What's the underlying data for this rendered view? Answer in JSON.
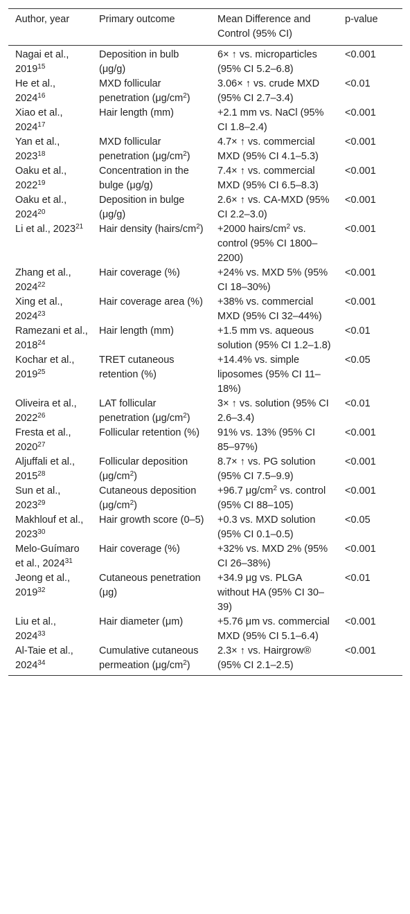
{
  "table": {
    "header": [
      "Author, year",
      "Primary outcome",
      "Mean Difference and Control (95% CI)",
      "p-value"
    ],
    "rows": [
      [
        [
          "Nagai et al., 2019",
          "15"
        ],
        [
          "Deposition in bulb (μg/g)"
        ],
        [
          "6× ↑ vs. microparticles (95% CI 5.2–6.8)"
        ],
        [
          "<0.001"
        ]
      ],
      [
        [
          "He et al., 2024",
          "16"
        ],
        [
          "MXD follicular penetration (μg/cm",
          "2",
          ")"
        ],
        [
          "3.06× ↑ vs. crude MXD (95% CI 2.7–3.4)"
        ],
        [
          "<0.01"
        ]
      ],
      [
        [
          "Xiao et al., 2024",
          "17"
        ],
        [
          "Hair length (mm)"
        ],
        [
          "+2.1 mm vs. NaCl (95% CI 1.8–2.4)"
        ],
        [
          "<0.001"
        ]
      ],
      [
        [
          "Yan et al., 2023",
          "18"
        ],
        [
          "MXD follicular penetration (μg/cm",
          "2",
          ")"
        ],
        [
          "4.7× ↑ vs. commercial MXD (95% CI 4.1–5.3)"
        ],
        [
          "<0.001"
        ]
      ],
      [
        [
          "Oaku et al., 2022",
          "19"
        ],
        [
          "Concentration in the bulge (μg/g)"
        ],
        [
          "7.4× ↑ vs. commercial MXD (95% CI 6.5–8.3)"
        ],
        [
          "<0.001"
        ]
      ],
      [
        [
          "Oaku et al., 2024",
          "20"
        ],
        [
          "Deposition in bulge (μg/g)"
        ],
        [
          "2.6× ↑ vs. CA-MXD (95% CI 2.2–3.0)"
        ],
        [
          "<0.001"
        ]
      ],
      [
        [
          "Li et al., 2023",
          "21"
        ],
        [
          "Hair density (hairs/cm",
          "2",
          ")"
        ],
        [
          "+2000 hairs/cm",
          "2",
          " vs. control (95% CI 1800–2200)"
        ],
        [
          "<0.001"
        ]
      ],
      [
        [
          "Zhang et al., 2024",
          "22"
        ],
        [
          "Hair coverage (%)"
        ],
        [
          "+24% vs. MXD 5% (95% CI 18–30%)"
        ],
        [
          "<0.001"
        ]
      ],
      [
        [
          "Xing et al., 2024",
          "23"
        ],
        [
          "Hair coverage area (%)"
        ],
        [
          "+38% vs. commercial MXD (95% CI 32–44%)"
        ],
        [
          "<0.001"
        ]
      ],
      [
        [
          "Ramezani et al., 2018",
          "24"
        ],
        [
          "Hair length (mm)"
        ],
        [
          "+1.5 mm vs. aqueous solution (95% CI 1.2–1.8)"
        ],
        [
          "<0.01"
        ]
      ],
      [
        [
          "Kochar et al., 2019",
          "25"
        ],
        [
          "TRET cutaneous retention (%)"
        ],
        [
          "+14.4% vs. simple liposomes (95% CI 11–18%)"
        ],
        [
          "<0.05"
        ]
      ],
      [
        [
          "Oliveira et al., 2022",
          "26"
        ],
        [
          "LAT follicular penetration (μg/cm",
          "2",
          ")"
        ],
        [
          "3× ↑ vs. solution (95% CI 2.6–3.4)"
        ],
        [
          "<0.01"
        ]
      ],
      [
        [
          "Fresta et al., 2020",
          "27"
        ],
        [
          "Follicular retention (%)"
        ],
        [
          "91% vs. 13% (95% CI 85–97%)"
        ],
        [
          "<0.001"
        ]
      ],
      [
        [
          "Aljuffali et al., 2015",
          "28"
        ],
        [
          "Follicular deposition (μg/cm",
          "2",
          ")"
        ],
        [
          "8.7× ↑ vs. PG solution (95% CI 7.5–9.9)"
        ],
        [
          "<0.001"
        ]
      ],
      [
        [
          "Sun et al., 2023",
          "29"
        ],
        [
          "Cutaneous deposition (μg/cm",
          "2",
          ")"
        ],
        [
          "+96.7 μg/cm",
          "2",
          " vs. control (95% CI 88–105)"
        ],
        [
          "<0.001"
        ]
      ],
      [
        [
          "Makhlouf et al., 2023",
          "30"
        ],
        [
          "Hair growth score (0–5)"
        ],
        [
          "+0.3 vs. MXD solution (95% CI 0.1–0.5)"
        ],
        [
          "<0.05"
        ]
      ],
      [
        [
          "Melo-Guímaro et al., 2024",
          "31"
        ],
        [
          "Hair coverage (%)"
        ],
        [
          "+32% vs. MXD 2% (95% CI 26–38%)"
        ],
        [
          "<0.001"
        ]
      ],
      [
        [
          "Jeong et al., 2019",
          "32"
        ],
        [
          "Cutaneous penetration (μg)"
        ],
        [
          "+34.9 μg vs. PLGA without HA (95% CI 30–39)"
        ],
        [
          "<0.01"
        ]
      ],
      [
        [
          "Liu et al., 2024",
          "33"
        ],
        [
          "Hair diameter (μm)"
        ],
        [
          "+5.76 μm vs. commercial MXD (95% CI 5.1–6.4)"
        ],
        [
          "<0.001"
        ]
      ],
      [
        [
          "Al-Taie et al., 2024",
          "34"
        ],
        [
          "Cumulative cutaneous permeation (μg/cm",
          "2",
          ")"
        ],
        [
          "2.3× ↑ vs. Hairgrow® (95% CI 2.1–2.5)"
        ],
        [
          "<0.001"
        ]
      ]
    ]
  }
}
